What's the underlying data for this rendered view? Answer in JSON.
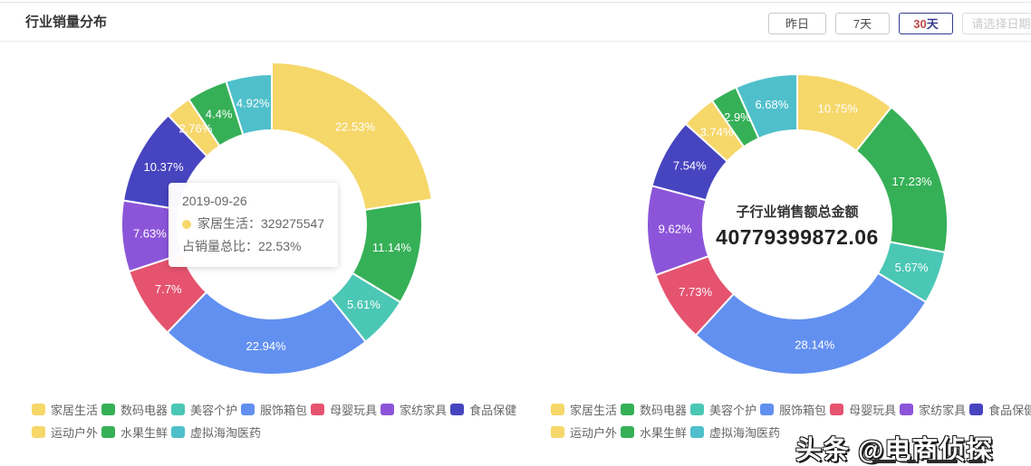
{
  "header": {
    "title": "行业销量分布",
    "range_buttons": [
      {
        "label": "昨日",
        "selected": false
      },
      {
        "label": "7天",
        "selected": false
      },
      {
        "label": "30天",
        "selected": true,
        "parts": {
          "num": "30",
          "unit": "天"
        }
      },
      {
        "label": "请选择日期",
        "selected": false,
        "disabled": true
      }
    ]
  },
  "chart_data": [
    {
      "type": "pie",
      "subtype": "donut",
      "position": "left",
      "categories": [
        "家居生活",
        "数码电器",
        "美容个护",
        "服饰箱包",
        "母婴玩具",
        "家纺家具",
        "食品保健",
        "运动户外",
        "水果生鲜",
        "虚拟海淘医药"
      ],
      "values": [
        22.53,
        11.14,
        5.61,
        22.94,
        7.7,
        7.63,
        10.37,
        2.76,
        4.4,
        4.92
      ],
      "labels": [
        "22.53%",
        "11.14%",
        "5.61%",
        "22.94%",
        "7.7%",
        "7.63%",
        "10.37%",
        "2.76%",
        "4.4%",
        "4.92%"
      ],
      "colors": [
        "#F6D76A",
        "#36B057",
        "#4BC7B5",
        "#6290F0",
        "#E5536F",
        "#8C55D9",
        "#4744C0",
        "#F6D76A",
        "#36B057",
        "#4FC0CB"
      ],
      "selected_category": "家居生活",
      "tooltip": {
        "date": "2019-09-26",
        "series_name": "家居生活",
        "separator": "：",
        "series_value": "329275547",
        "share_line": "占销量总比：22.53%",
        "dot_color": "#F6D76A"
      }
    },
    {
      "type": "pie",
      "subtype": "donut",
      "position": "right",
      "categories": [
        "家居生活",
        "数码电器",
        "美容个护",
        "服饰箱包",
        "母婴玩具",
        "家纺家具",
        "食品保健",
        "运动户外",
        "水果生鲜",
        "虚拟海淘医药"
      ],
      "values": [
        10.75,
        17.23,
        5.67,
        28.14,
        7.73,
        9.62,
        7.54,
        3.74,
        2.9,
        6.68
      ],
      "labels": [
        "10.75%",
        "17.23%",
        "5.67%",
        "28.14%",
        "7.73%",
        "9.62%",
        "7.54%",
        "3.74%",
        "2.9%",
        "6.68%"
      ],
      "colors": [
        "#F6D76A",
        "#36B057",
        "#4BC7B5",
        "#6290F0",
        "#E5536F",
        "#8C55D9",
        "#4744C0",
        "#F6D76A",
        "#36B057",
        "#4FC0CB"
      ],
      "center_title": "子行业销售额总金额",
      "center_value": "40779399872.06"
    }
  ],
  "legend": {
    "rows": [
      [
        0,
        1,
        2,
        3,
        4,
        5,
        6
      ],
      [
        7,
        8,
        9
      ]
    ],
    "items": [
      {
        "label": "家居生活",
        "color": "#F6D76A"
      },
      {
        "label": "数码电器",
        "color": "#36B057"
      },
      {
        "label": "美容个护",
        "color": "#4BC7B5"
      },
      {
        "label": "服饰箱包",
        "color": "#6290F0"
      },
      {
        "label": "母婴玩具",
        "color": "#E5536F"
      },
      {
        "label": "家纺家具",
        "color": "#8C55D9"
      },
      {
        "label": "食品保健",
        "color": "#4744C0"
      },
      {
        "label": "运动户外",
        "color": "#F6D76A"
      },
      {
        "label": "水果生鲜",
        "color": "#36B057"
      },
      {
        "label": "虚拟海淘医药",
        "color": "#4FC0CB"
      }
    ]
  },
  "watermark": "头条 @电商侦探"
}
